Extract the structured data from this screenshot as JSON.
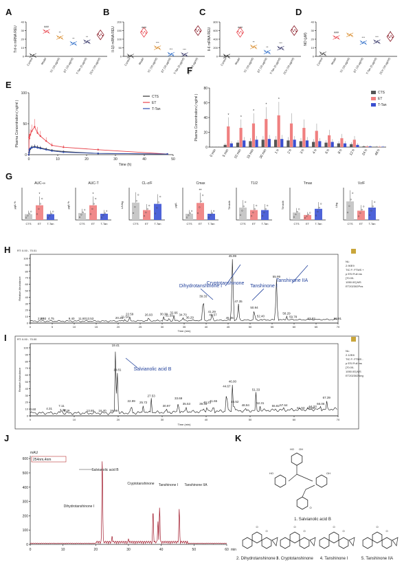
{
  "panels": {
    "A": "A",
    "B": "B",
    "C": "C",
    "D": "D",
    "E": "E",
    "F": "F",
    "G": "G",
    "H": "H",
    "I": "I",
    "J": "J",
    "K": "K"
  },
  "groups": [
    "Control",
    "Model",
    "YC (10 μg/ml)",
    "ET (10 μg/ml)",
    "T-Tan (5 μg/ml)",
    "ZCX (10 μg/ml)"
  ],
  "chart_data": [
    {
      "panel": "A",
      "type": "scatter",
      "ylabel": "Tnf-α mRNA REU",
      "ylim": [
        0,
        40
      ],
      "yticks": [
        0,
        10,
        20,
        30,
        40
      ],
      "values": [
        1,
        29,
        22,
        15,
        17,
        25
      ],
      "sig": [
        "",
        "###",
        "**",
        "**",
        "**",
        ""
      ],
      "colors": [
        "#444444",
        "#e8434b",
        "#d98b2b",
        "#2f6ec9",
        "#333366",
        "#8b1e2a"
      ]
    },
    {
      "panel": "B",
      "type": "scatter",
      "ylabel": "Il-1β mRNA REU",
      "ylim": [
        0,
        200
      ],
      "yticks": [
        0,
        50,
        100,
        150,
        200
      ],
      "values": [
        2,
        140,
        50,
        12,
        10,
        150
      ],
      "sig": [
        "",
        "###",
        "***",
        "***",
        "***",
        ""
      ],
      "colors": [
        "#444444",
        "#e8434b",
        "#d98b2b",
        "#2f6ec9",
        "#333366",
        "#8b1e2a"
      ]
    },
    {
      "panel": "C",
      "type": "scatter",
      "ylabel": "Il-6 mRNA REU",
      "ylim": [
        0,
        800
      ],
      "yticks": [
        0,
        200,
        400,
        600,
        800
      ],
      "values": [
        5,
        560,
        220,
        100,
        190,
        600
      ],
      "sig": [
        "",
        "###",
        "**",
        "**",
        "***",
        ""
      ],
      "colors": [
        "#444444",
        "#e8434b",
        "#d98b2b",
        "#2f6ec9",
        "#333366",
        "#8b1e2a"
      ]
    },
    {
      "panel": "D",
      "type": "scatter",
      "ylabel": "NO (μM)",
      "ylim": [
        0,
        40
      ],
      "yticks": [
        0,
        10,
        20,
        30,
        40
      ],
      "values": [
        3,
        22,
        25,
        16,
        17,
        23
      ],
      "sig": [
        "",
        "###",
        "",
        "***",
        "***",
        "*"
      ],
      "colors": [
        "#444444",
        "#e8434b",
        "#d98b2b",
        "#2f6ec9",
        "#333366",
        "#8b1e2a"
      ]
    },
    {
      "panel": "E",
      "type": "line",
      "xlabel": "Time (h)",
      "ylabel": "Plasma Concentration ( ng/ml )",
      "xlim": [
        0,
        50
      ],
      "ylim": [
        0,
        100
      ],
      "xticks": [
        0,
        10,
        20,
        30,
        40,
        50
      ],
      "yticks": [
        0,
        50,
        100
      ],
      "x": [
        0,
        0.083,
        0.167,
        0.5,
        1,
        2,
        3,
        4,
        6,
        8,
        12,
        24,
        48
      ],
      "series": [
        {
          "name": "CTS",
          "color": "#333333",
          "values": [
            0,
            3,
            6,
            9,
            12,
            13,
            12,
            11,
            9,
            7,
            5,
            2,
            1
          ]
        },
        {
          "name": "ET",
          "color": "#e8434b",
          "values": [
            0,
            28,
            26,
            32,
            38,
            45,
            35,
            30,
            22,
            15,
            12,
            8,
            1
          ]
        },
        {
          "name": "T-Tan",
          "color": "#2f4db0",
          "values": [
            0,
            4,
            8,
            10,
            11,
            12,
            11,
            10,
            8,
            6,
            4,
            2,
            1
          ]
        }
      ]
    },
    {
      "panel": "F",
      "type": "bar",
      "ylabel": "Plasma Concentration ( ng/ml )",
      "ylim": [
        0,
        80
      ],
      "yticks": [
        0,
        20,
        40,
        60,
        80
      ],
      "categories": [
        "0 min",
        "5 min",
        "10 min",
        "15 min",
        "30 min",
        "1 h",
        "2 h",
        "3 h",
        "4 h",
        "6 h",
        "8 h",
        "12 h",
        "24 h",
        "48 h"
      ],
      "series": [
        {
          "name": "CTS",
          "color": "#555555",
          "values": [
            0,
            3,
            6,
            8,
            10,
            10,
            9,
            8,
            7,
            6,
            5,
            4,
            1,
            0.5
          ]
        },
        {
          "name": "ET",
          "color": "#f08080",
          "values": [
            0,
            28,
            26,
            32,
            38,
            43,
            32,
            26,
            22,
            16,
            12,
            10,
            1,
            0.5
          ]
        },
        {
          "name": "T-Tan",
          "color": "#3a4fd0",
          "values": [
            0,
            5,
            9,
            10,
            11,
            11,
            10,
            9,
            8,
            7,
            5,
            3,
            1,
            0.5
          ]
        }
      ],
      "stars": [
        "",
        "*",
        "*",
        "*",
        "*",
        "*",
        "",
        "",
        "",
        "",
        "",
        "",
        "",
        ""
      ]
    },
    {
      "panel": "G",
      "type": "bar",
      "groups": [
        "CTS",
        "ET",
        "T-Tan"
      ],
      "colors": [
        "#c8c8c8",
        "#f08a8a",
        "#4e63d8"
      ],
      "subplots": [
        {
          "title": "AUC-∞",
          "ylabel": "μg/L*h",
          "values": [
            150,
            380,
            150
          ],
          "ymax": 800,
          "sig": [
            "",
            "*",
            ""
          ]
        },
        {
          "title": "AUC-T",
          "ylabel": "μg/L*h",
          "values": [
            180,
            380,
            160
          ],
          "ymax": 800,
          "sig": [
            "",
            "*",
            ""
          ]
        },
        {
          "title": "CL-z/F",
          "ylabel": "L/h/kg",
          "values": [
            1.4,
            0.8,
            1.3
          ],
          "ymax": 2.5,
          "sig": [
            "",
            "",
            ""
          ]
        },
        {
          "title": "Cmax",
          "ylabel": "μg/L",
          "values": [
            40,
            110,
            40
          ],
          "ymax": 200,
          "sig": [
            "",
            "**",
            ""
          ]
        },
        {
          "title": "T1/2",
          "ylabel": "T/min/h",
          "values": [
            10,
            8,
            8
          ],
          "ymax": 25,
          "sig": [
            "",
            "",
            ""
          ]
        },
        {
          "title": "Tmax",
          "ylabel": "T/min/h",
          "values": [
            1.2,
            0.8,
            1.8
          ],
          "ymax": 5,
          "sig": [
            "",
            "",
            ""
          ]
        },
        {
          "title": "Vz/F",
          "ylabel": "L/kg",
          "values": [
            60,
            30,
            40
          ],
          "ymax": 100,
          "sig": [
            "",
            "",
            ""
          ]
        }
      ]
    },
    {
      "panel": "H",
      "type": "line",
      "title": "RT: 0.00 - 70.01",
      "xlabel": "Time (min)",
      "ylabel": "Relative Abundance",
      "xlim": [
        0,
        70
      ],
      "ylim": [
        0,
        100
      ],
      "xticks": [
        0,
        5,
        10,
        15,
        20,
        25,
        30,
        35,
        40,
        45,
        50,
        55,
        60,
        65,
        70
      ],
      "yticks": [
        0,
        10,
        20,
        30,
        40,
        50,
        60,
        70,
        80,
        90,
        100
      ],
      "info": [
        "NL:",
        "2.90E9",
        "TIC F: FTMS +",
        "p ESI Full ms",
        "[70.00-",
        "1050.00] MS",
        "ET202302Pos"
      ],
      "peaks": [
        {
          "rt": 2.4,
          "h": 3
        },
        {
          "rt": 2.93,
          "h": 3
        },
        {
          "rt": 4.75,
          "h": 3
        },
        {
          "rt": 9.4,
          "h": 3
        },
        {
          "rt": 11.8,
          "h": 3
        },
        {
          "rt": 13.53,
          "h": 3
        },
        {
          "rt": 20.23,
          "h": 4
        },
        {
          "rt": 21.54,
          "h": 6
        },
        {
          "rt": 22.59,
          "h": 10
        },
        {
          "rt": 26.93,
          "h": 9
        },
        {
          "rt": 30.38,
          "h": 10
        },
        {
          "rt": 31.59,
          "h": 8
        },
        {
          "rt": 32.66,
          "h": 12
        },
        {
          "rt": 34.7,
          "h": 9
        },
        {
          "rt": 36.29,
          "h": 5
        },
        {
          "rt": 39.33,
          "h": 38
        },
        {
          "rt": 41.29,
          "h": 14
        },
        {
          "rt": 41.57,
          "h": 9
        },
        {
          "rt": 45.35,
          "h": 4
        },
        {
          "rt": 45.99,
          "h": 100
        },
        {
          "rt": 47.35,
          "h": 30
        },
        {
          "rt": 50.94,
          "h": 20
        },
        {
          "rt": 52.4,
          "h": 7
        },
        {
          "rt": 55.99,
          "h": 68
        },
        {
          "rt": 58.29,
          "h": 11
        },
        {
          "rt": 59.78,
          "h": 6
        },
        {
          "rt": 63.92,
          "h": 3
        },
        {
          "rt": 69.91,
          "h": 3
        }
      ],
      "annotations": [
        "Dihydrotanshinone I",
        "Cryptotanshinone",
        "Tanshinone I",
        "Tanshinone IIA"
      ]
    },
    {
      "panel": "I",
      "type": "line",
      "title": "RT: 0.00 - 70.00",
      "xlabel": "Time (min)",
      "ylabel": "Relative Abundance",
      "xlim": [
        0,
        70
      ],
      "ylim": [
        0,
        100
      ],
      "xticks": [
        0,
        10,
        20,
        30,
        40,
        50,
        60,
        70
      ],
      "yticks": [
        0,
        10,
        20,
        30,
        40,
        50,
        60,
        70,
        80,
        90,
        100
      ],
      "info": [
        "NL:",
        "2.12E8",
        "TIC F: FTMS -",
        "p ESI Full ms",
        "[70.00-",
        "1050.00] MS",
        "ET202302Neg"
      ],
      "peaks": [
        {
          "rt": 0.6,
          "h": 6
        },
        {
          "rt": 4.31,
          "h": 7
        },
        {
          "rt": 7.11,
          "h": 11
        },
        {
          "rt": 7.39,
          "h": 5
        },
        {
          "rt": 8.29,
          "h": 4
        },
        {
          "rt": 13.65,
          "h": 4
        },
        {
          "rt": 16.4,
          "h": 4
        },
        {
          "rt": 18.99,
          "h": 4
        },
        {
          "rt": 19.41,
          "h": 100
        },
        {
          "rt": 19.81,
          "h": 64
        },
        {
          "rt": 22.99,
          "h": 18
        },
        {
          "rt": 25.72,
          "h": 16
        },
        {
          "rt": 27.53,
          "h": 26
        },
        {
          "rt": 30.97,
          "h": 11
        },
        {
          "rt": 33.69,
          "h": 22
        },
        {
          "rt": 35.53,
          "h": 14
        },
        {
          "rt": 39.33,
          "h": 14
        },
        {
          "rt": 40.23,
          "h": 16
        },
        {
          "rt": 41.65,
          "h": 18
        },
        {
          "rt": 44.67,
          "h": 40
        },
        {
          "rt": 46.0,
          "h": 47
        },
        {
          "rt": 46.52,
          "h": 17
        },
        {
          "rt": 48.94,
          "h": 12
        },
        {
          "rt": 51.33,
          "h": 35
        },
        {
          "rt": 52.31,
          "h": 15
        },
        {
          "rt": 55.82,
          "h": 11
        },
        {
          "rt": 57.64,
          "h": 12
        },
        {
          "rt": 61.53,
          "h": 8
        },
        {
          "rt": 63.82,
          "h": 8
        },
        {
          "rt": 64.23,
          "h": 10
        },
        {
          "rt": 66.06,
          "h": 14
        },
        {
          "rt": 67.39,
          "h": 23
        }
      ],
      "annotations": [
        "Salvianolic acid B"
      ]
    },
    {
      "panel": "J",
      "type": "line",
      "title": "254nm,4nm",
      "unit": "mAU",
      "xlabel": "min",
      "xlim": [
        0,
        60
      ],
      "ylim": [
        0,
        620
      ],
      "xticks": [
        0,
        10,
        20,
        30,
        40,
        50,
        60
      ],
      "yticks": [
        0,
        100,
        200,
        300,
        400,
        500,
        600
      ],
      "peaks": [
        {
          "rt": 22,
          "h": 610
        },
        {
          "rt": 37.5,
          "h": 240
        },
        {
          "rt": 39,
          "h": 160
        },
        {
          "rt": 39.5,
          "h": 260
        },
        {
          "rt": 45.5,
          "h": 250
        },
        {
          "rt": 25,
          "h": 60
        },
        {
          "rt": 30,
          "h": 40
        }
      ],
      "annotations": [
        "Salvianolic acid B",
        "Dihydrotanshinone I",
        "Cryptotanshinone",
        "Tanshinone I",
        "Tanshinone IIA"
      ]
    }
  ],
  "legendE": [
    "CTS",
    "ET",
    "T-Tan"
  ],
  "legendF": [
    "CTS",
    "ET",
    "T-Tan"
  ],
  "labelsK": [
    "1. Salvianolic acid B",
    "2. Dihydrotanshinone I",
    "3. Cryptotanshinone",
    "4. Tanshinone I",
    "5. Tanshinone IIA"
  ],
  "atoms": {
    "O": "O",
    "OH": "OH",
    "HO": "HO"
  },
  "abc": {
    "tnf": "Tnf-α mRNA REU",
    "il1": "Il-1β mRNA REU",
    "il6": "Il-6 mRNA REU",
    "no": "NO (μM)"
  }
}
